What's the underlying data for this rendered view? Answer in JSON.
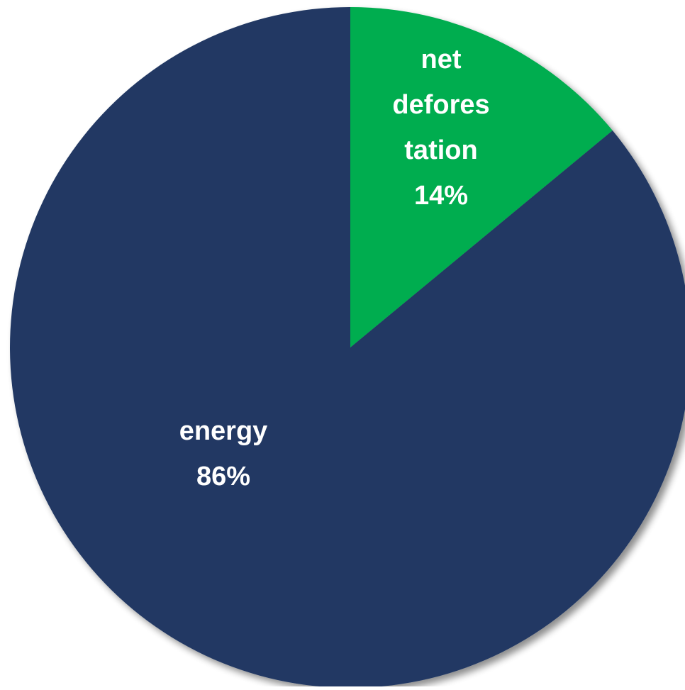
{
  "chart_data": {
    "type": "pie",
    "start_angle_deg": 0,
    "direction": "clockwise",
    "slices": [
      {
        "label_lines": [
          "net",
          "defores",
          "tation",
          "14%"
        ],
        "value": 14,
        "color": "#00ad4f"
      },
      {
        "label_lines": [
          "energy",
          "86%"
        ],
        "value": 86,
        "color": "#203864"
      }
    ]
  }
}
